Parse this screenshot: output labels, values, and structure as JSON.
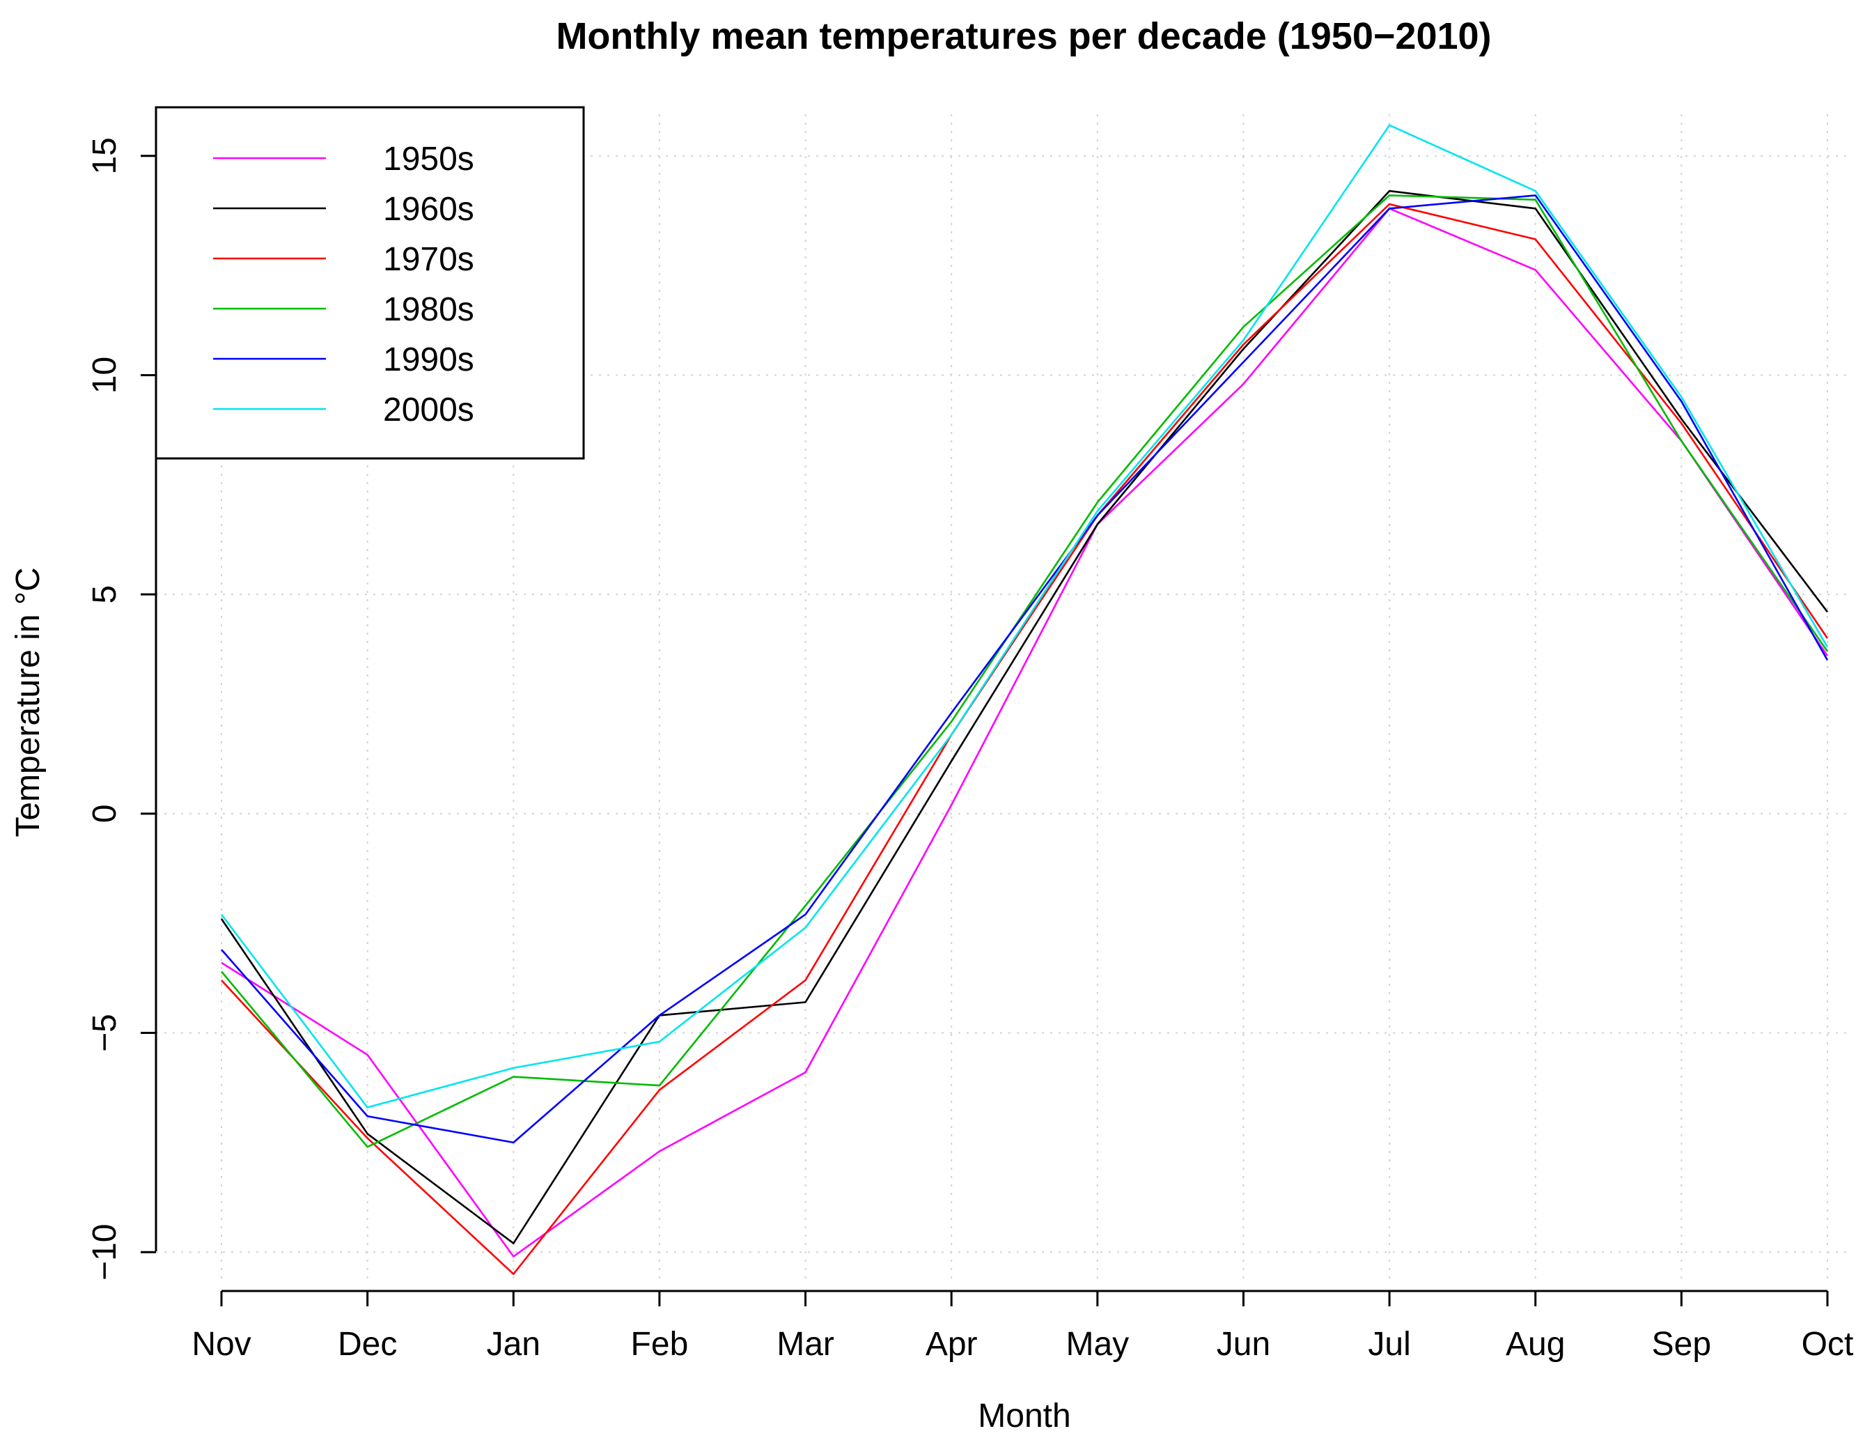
{
  "chart_data": {
    "type": "line",
    "title": "Monthly mean temperatures per decade (1950−2010)",
    "xlabel": "Month",
    "ylabel": "Temperature in °C",
    "categories": [
      "Nov",
      "Dec",
      "Jan",
      "Feb",
      "Mar",
      "Apr",
      "May",
      "Jun",
      "Jul",
      "Aug",
      "Sep",
      "Oct"
    ],
    "ylim": [
      -10.6,
      15.95
    ],
    "yticks": [
      -10,
      -5,
      0,
      5,
      10,
      15
    ],
    "ytick_labels": [
      "−10",
      "−5",
      "0",
      "5",
      "10",
      "15"
    ],
    "grid": true,
    "legend_position": "top-left",
    "series": [
      {
        "name": "1950s",
        "color": "#ff00ff",
        "values": [
          -3.4,
          -5.5,
          -10.1,
          -7.7,
          -5.9,
          0.2,
          6.6,
          9.8,
          13.8,
          12.4,
          8.5,
          3.6
        ]
      },
      {
        "name": "1960s",
        "color": "#000000",
        "values": [
          -2.4,
          -7.3,
          -9.8,
          -4.6,
          -4.3,
          1.2,
          6.6,
          10.6,
          14.2,
          13.8,
          9.0,
          4.6
        ]
      },
      {
        "name": "1970s",
        "color": "#ff0000",
        "values": [
          -3.8,
          -7.4,
          -10.5,
          -6.3,
          -3.8,
          1.8,
          6.8,
          10.7,
          13.9,
          13.1,
          8.9,
          4.0
        ]
      },
      {
        "name": "1980s",
        "color": "#00bb00",
        "values": [
          -3.6,
          -7.6,
          -6.0,
          -6.2,
          -2.1,
          2.1,
          7.1,
          11.1,
          14.1,
          14.0,
          8.5,
          3.7
        ]
      },
      {
        "name": "1990s",
        "color": "#0000ff",
        "values": [
          -3.1,
          -6.9,
          -7.5,
          -4.6,
          -2.3,
          2.3,
          6.8,
          10.3,
          13.8,
          14.1,
          9.4,
          3.5
        ]
      },
      {
        "name": "2000s",
        "color": "#00e5ee",
        "values": [
          -2.3,
          -6.7,
          -5.8,
          -5.2,
          -2.6,
          1.8,
          6.9,
          10.8,
          15.7,
          14.2,
          9.5,
          3.8
        ]
      }
    ]
  }
}
